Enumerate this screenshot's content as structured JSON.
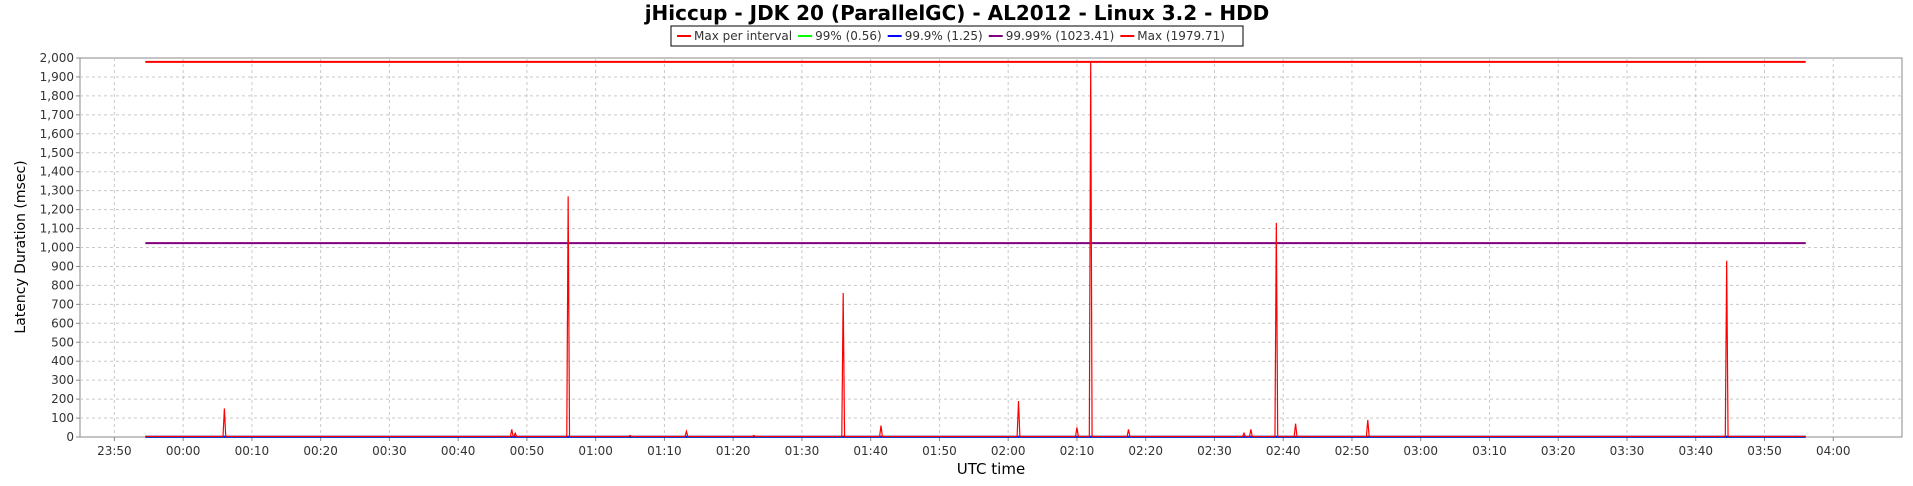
{
  "chart_data": {
    "type": "line",
    "title": "jHiccup - JDK 20 (ParallelGC) - AL2012 - Linux 3.2 - HDD",
    "xlabel": "UTC time",
    "ylabel": "Latency Duration (msec)",
    "ylim": [
      0,
      2000
    ],
    "y_ticks": [
      0,
      100,
      200,
      300,
      400,
      500,
      600,
      700,
      800,
      900,
      1000,
      1100,
      1200,
      1300,
      1400,
      1500,
      1600,
      1700,
      1800,
      1900,
      2000
    ],
    "y_tick_labels": [
      "0",
      "100",
      "200",
      "300",
      "400",
      "500",
      "600",
      "700",
      "800",
      "900",
      "1,000",
      "1,100",
      "1,200",
      "1,300",
      "1,400",
      "1,500",
      "1,600",
      "1,700",
      "1,800",
      "1,900",
      "2,000"
    ],
    "x_range_minutes": [
      -15,
      250
    ],
    "x_ticks_minutes": [
      -10,
      0,
      10,
      20,
      30,
      40,
      50,
      60,
      70,
      80,
      90,
      100,
      110,
      120,
      130,
      140,
      150,
      160,
      170,
      180,
      190,
      200,
      210,
      220,
      230,
      240
    ],
    "x_tick_labels": [
      "23:50",
      "00:00",
      "00:10",
      "00:20",
      "00:30",
      "00:40",
      "00:50",
      "01:00",
      "01:10",
      "01:20",
      "01:30",
      "01:40",
      "01:50",
      "02:00",
      "02:10",
      "02:20",
      "02:30",
      "02:40",
      "02:50",
      "03:00",
      "03:10",
      "03:20",
      "03:30",
      "03:40",
      "03:50",
      "04:00"
    ],
    "grid": true,
    "legend_position": "top-center",
    "series": [
      {
        "name": "Max per interval",
        "color": "#ff0000",
        "style": "spiky",
        "start_minute": -5.5,
        "end_minute": 236.0,
        "baseline_value": 3,
        "peaks": [
          {
            "minute": 6.0,
            "value": 150
          },
          {
            "minute": 47.8,
            "value": 40
          },
          {
            "minute": 48.3,
            "value": 20
          },
          {
            "minute": 56.0,
            "value": 1270
          },
          {
            "minute": 65.0,
            "value": 8
          },
          {
            "minute": 73.2,
            "value": 30
          },
          {
            "minute": 83.0,
            "value": 8
          },
          {
            "minute": 96.0,
            "value": 760
          },
          {
            "minute": 101.5,
            "value": 60
          },
          {
            "minute": 121.5,
            "value": 190
          },
          {
            "minute": 130.0,
            "value": 50
          },
          {
            "minute": 132.0,
            "value": 1980
          },
          {
            "minute": 137.5,
            "value": 40
          },
          {
            "minute": 154.3,
            "value": 20
          },
          {
            "minute": 155.3,
            "value": 40
          },
          {
            "minute": 159.0,
            "value": 1130
          },
          {
            "minute": 161.8,
            "value": 70
          },
          {
            "minute": 172.3,
            "value": 90
          },
          {
            "minute": 224.5,
            "value": 930
          }
        ]
      },
      {
        "name": "99%",
        "label": "99% (0.56)",
        "color": "#00ff00",
        "value": 0.56,
        "start_minute": -5.5,
        "end_minute": 236.0
      },
      {
        "name": "99.9%",
        "label": "99.9% (1.25)",
        "color": "#0000ff",
        "value": 1.25,
        "start_minute": -5.5,
        "end_minute": 236.0
      },
      {
        "name": "99.99%",
        "label": "99.99% (1023.41)",
        "color": "#800080",
        "value": 1023.41,
        "start_minute": -5.5,
        "end_minute": 236.0
      },
      {
        "name": "Max",
        "label": "Max (1979.71)",
        "color": "#ff0000",
        "value": 1979.71,
        "start_minute": -5.5,
        "end_minute": 236.0
      }
    ],
    "legend_entries": [
      {
        "label": "Max per interval",
        "color": "#ff0000"
      },
      {
        "label": "99% (0.56)",
        "color": "#00ff00"
      },
      {
        "label": "99.9% (1.25)",
        "color": "#0000ff"
      },
      {
        "label": "99.99% (1023.41)",
        "color": "#800080"
      },
      {
        "label": "Max (1979.71)",
        "color": "#ff0000"
      }
    ]
  }
}
